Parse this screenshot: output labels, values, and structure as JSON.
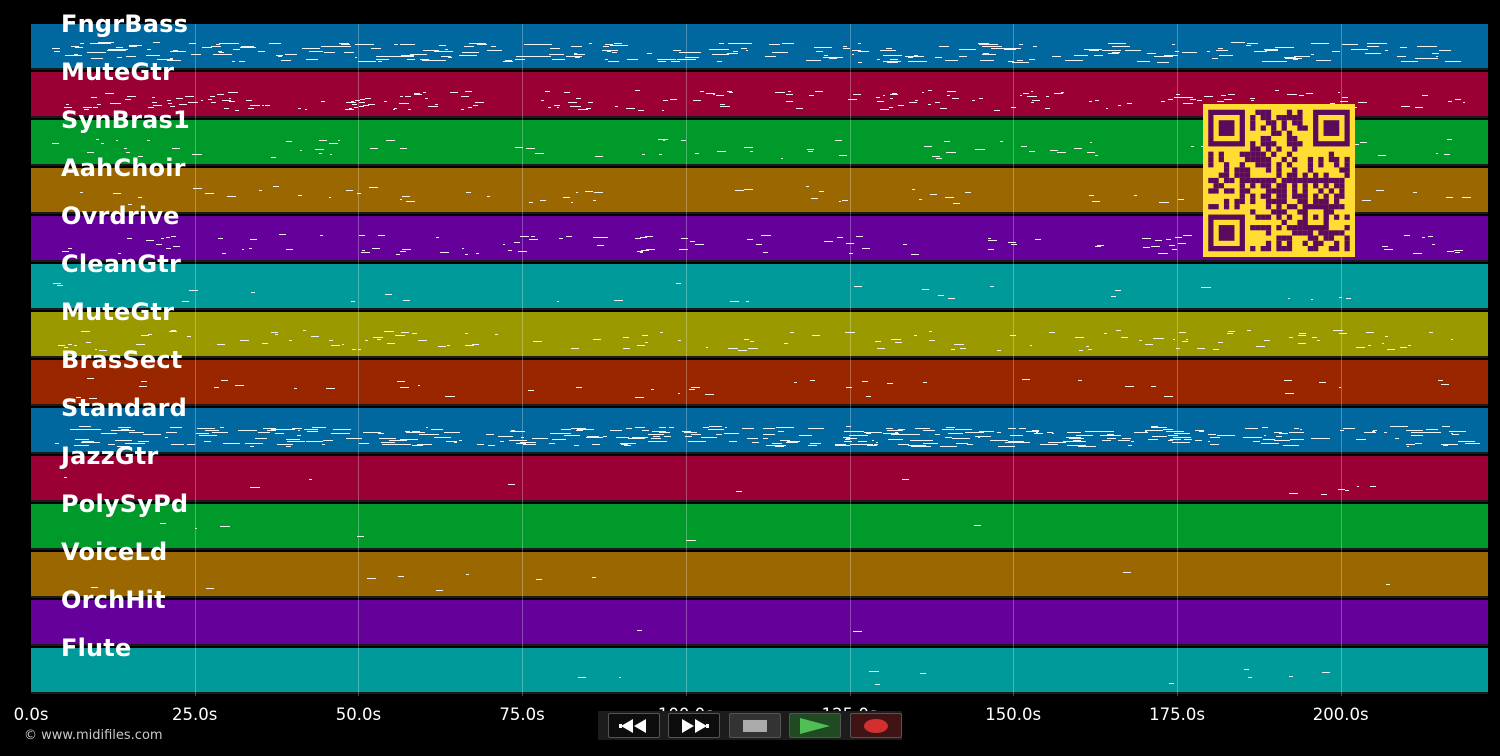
{
  "tracks": [
    {
      "name": "FngrBass",
      "color": "#00679f"
    },
    {
      "name": "MuteGtr",
      "color": "#9b0034"
    },
    {
      "name": "SynBras1",
      "color": "#009a2a"
    },
    {
      "name": "AahChoir",
      "color": "#9a6700"
    },
    {
      "name": "Ovrdrive",
      "color": "#65009b"
    },
    {
      "name": "CleanGtr",
      "color": "#009a9b"
    },
    {
      "name": "MuteGtr",
      "color": "#9a9a00"
    },
    {
      "name": "BrasSect",
      "color": "#9a2600"
    },
    {
      "name": "Standard",
      "color": "#00679f"
    },
    {
      "name": "JazzGtr",
      "color": "#9b0034"
    },
    {
      "name": "PolySyPd",
      "color": "#009a2a"
    },
    {
      "name": "VoiceLd",
      "color": "#9a6700"
    },
    {
      "name": "OrchHit",
      "color": "#65009b"
    },
    {
      "name": "Flute",
      "color": "#009a9b"
    }
  ],
  "time_axis": {
    "ticks": [
      "0.0s",
      "25.0s",
      "50.0s",
      "75.0s",
      "100.0s",
      "125.0s",
      "150.0s",
      "175.0s",
      "200.0s"
    ],
    "tick_values": [
      0,
      25,
      50,
      75,
      100,
      125,
      150,
      175,
      200
    ],
    "max_seconds": 222.5
  },
  "copyright": "© www.midifiles.com",
  "transport": {
    "buttons": [
      {
        "name": "rewind-button",
        "icon": "rewind-icon"
      },
      {
        "name": "fast-forward-button",
        "icon": "fast-forward-icon"
      },
      {
        "name": "stop-button",
        "icon": "stop-icon"
      },
      {
        "name": "play-button",
        "icon": "play-icon",
        "color": "#3fa847"
      },
      {
        "name": "record-button",
        "icon": "record-icon",
        "color": "#d23030"
      }
    ]
  },
  "qr_code": {
    "color": "#ffdd33",
    "module_color": "#5c0a5c"
  }
}
